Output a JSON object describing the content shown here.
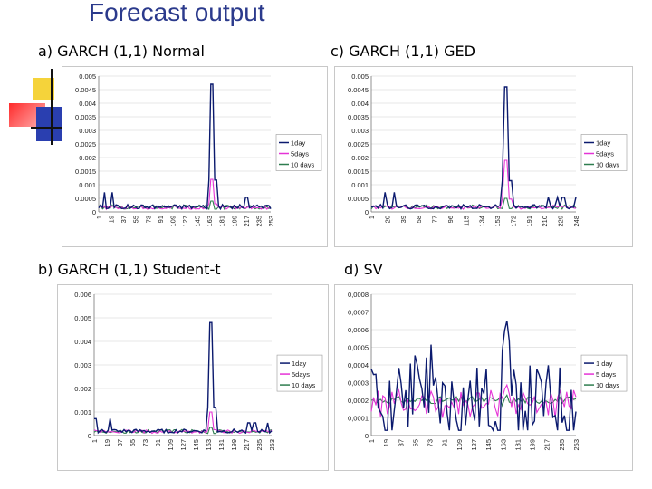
{
  "slide": {
    "title": "Forecast output"
  },
  "panels": [
    {
      "label": "a) GARCH (1,1) Normal"
    },
    {
      "label": "c) GARCH (1,1) GED"
    },
    {
      "label": "b) GARCH (1,1) Student-t"
    },
    {
      "label": "d) SV"
    }
  ],
  "colors": {
    "title": "#2b3a8c",
    "s1day": "#0b1a6e",
    "s5days": "#e533d6",
    "s10days": "#2e7d4f",
    "grid": "#d0d0d0"
  },
  "chart_data": [
    {
      "type": "line",
      "title": "",
      "xlabel": "",
      "ylabel": "",
      "grid": true,
      "legend": "right",
      "ylim": [
        0,
        0.005
      ],
      "ytick_labels": [
        "0.005",
        "0.0045",
        "0.004",
        "0.0035",
        "0.003",
        "0.0025",
        "0.002",
        "0.0015",
        "0.001",
        "0.0005",
        "0"
      ],
      "xtick_labels": [
        "1",
        "19",
        "37",
        "55",
        "73",
        "91",
        "109",
        "127",
        "145",
        "163",
        "181",
        "199",
        "217",
        "235",
        "253"
      ],
      "series": [
        {
          "name": "1day",
          "peak": 0.0047,
          "base": 0.00018
        },
        {
          "name": "5days",
          "peak": 0.0012,
          "base": 0.00015
        },
        {
          "name": "10 days",
          "peak": 0.0004,
          "base": 0.00017
        }
      ]
    },
    {
      "type": "line",
      "title": "",
      "xlabel": "",
      "ylabel": "",
      "grid": true,
      "legend": "right",
      "ylim": [
        0,
        0.005
      ],
      "ytick_labels": [
        "0.005",
        "0.0045",
        "0.004",
        "0.0035",
        "0.003",
        "0.0025",
        "0.002",
        "0.0015",
        "0.001",
        "0.0005",
        "0"
      ],
      "xtick_labels": [
        "1",
        "20",
        "39",
        "58",
        "77",
        "96",
        "115",
        "134",
        "153",
        "172",
        "191",
        "210",
        "229",
        "248"
      ],
      "series": [
        {
          "name": "1day",
          "peak": 0.0046,
          "base": 0.00018
        },
        {
          "name": "5days",
          "peak": 0.0019,
          "base": 0.00016
        },
        {
          "name": "10 days",
          "peak": 0.0005,
          "base": 0.00017
        }
      ]
    },
    {
      "type": "line",
      "title": "",
      "xlabel": "",
      "ylabel": "",
      "grid": true,
      "legend": "right",
      "ylim": [
        0,
        0.006
      ],
      "ytick_labels": [
        "0.006",
        "0.005",
        "0.004",
        "0.003",
        "0.002",
        "0.001",
        "0"
      ],
      "xtick_labels": [
        "1",
        "19",
        "37",
        "55",
        "73",
        "91",
        "109",
        "127",
        "145",
        "163",
        "181",
        "199",
        "217",
        "235",
        "253"
      ],
      "series": [
        {
          "name": "1day",
          "peak": 0.0048,
          "base": 0.00018
        },
        {
          "name": "5days",
          "peak": 0.001,
          "base": 0.00016
        },
        {
          "name": "10 days",
          "peak": 0.00035,
          "base": 0.00017
        }
      ]
    },
    {
      "type": "line",
      "title": "",
      "xlabel": "",
      "ylabel": "",
      "grid": true,
      "legend": "right",
      "ylim": [
        0,
        0.0008
      ],
      "ytick_labels": [
        "0,0008",
        "0,0007",
        "0,0006",
        "0,0005",
        "0,0004",
        "0,0003",
        "0,0002",
        "0,0001",
        "0"
      ],
      "xtick_labels": [
        "1",
        "19",
        "37",
        "55",
        "73",
        "91",
        "109",
        "127",
        "145",
        "163",
        "181",
        "199",
        "217",
        "235",
        "253"
      ],
      "series": [
        {
          "name": "1 day",
          "peak": 0.00068,
          "base": 0.00018
        },
        {
          "name": "5 days",
          "peak": 0.0003,
          "base": 0.00018
        },
        {
          "name": "10 days",
          "peak": 0.00024,
          "base": 0.0002
        }
      ]
    }
  ]
}
